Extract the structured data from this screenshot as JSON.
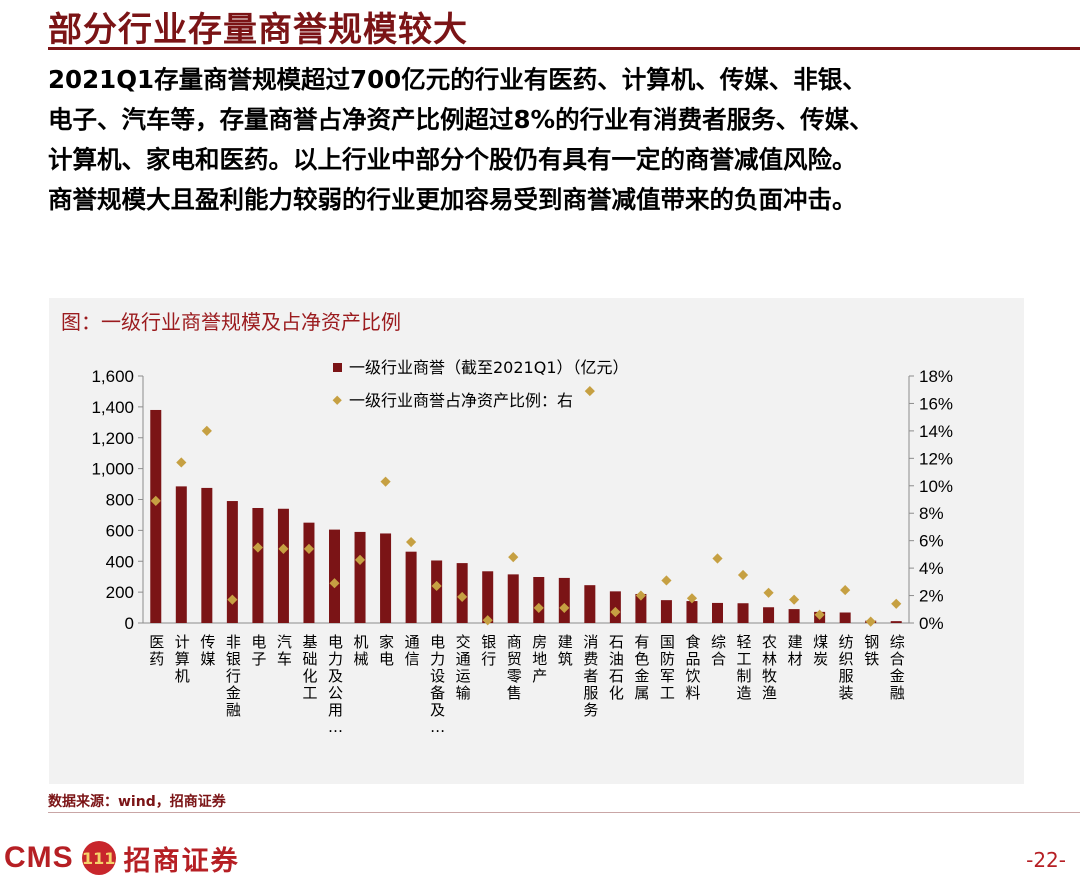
{
  "slide": {
    "title": "部分行业存量商誉规模较大",
    "summary_lines": [
      "2021Q1存量商誉规模超过700亿元的行业有医药、计算机、传媒、非银、",
      "电子、汽车等，存量商誉占净资产比例超过8%的行业有消费者服务、传媒、",
      "计算机、家电和医药。以上行业中部分个股仍有具有一定的商誉减值风险。",
      "商誉规模大且盈利能力较弱的行业更加容易受到商誉减值带来的负面冲击。"
    ],
    "source": "数据来源：wind，招商证券",
    "page_number": "-22-",
    "logo": {
      "cms": "CMS",
      "emblem": "111",
      "company": "招商证券"
    }
  },
  "colors": {
    "accent": "#7b1416",
    "bar": "#7b1416",
    "marker": "#c6a042",
    "chart_bg": "#f2f2f2"
  },
  "chart_data": {
    "type": "bar",
    "title": "图：一级行业商誉规模及占净资产比例",
    "categories": [
      "医药",
      "计算机",
      "传媒",
      "非银行金融",
      "电子",
      "汽车",
      "基础化工",
      "电力及公用…",
      "机械",
      "家电",
      "通信",
      "电力设备及…",
      "交通运输",
      "银行",
      "商贸零售",
      "房地产",
      "建筑",
      "消费者服务",
      "石油石化",
      "有色金属",
      "国防军工",
      "食品饮料",
      "综合",
      "轻工制造",
      "农林牧渔",
      "建材",
      "煤炭",
      "纺织服装",
      "钢铁",
      "综合金融"
    ],
    "series": [
      {
        "name": "一级行业商誉（截至2021Q1）（亿元）",
        "type": "bar",
        "axis": "left",
        "values": [
          1380,
          885,
          875,
          790,
          745,
          740,
          650,
          605,
          590,
          580,
          462,
          405,
          388,
          335,
          315,
          298,
          292,
          245,
          205,
          188,
          148,
          142,
          130,
          128,
          102,
          90,
          72,
          68,
          15,
          12
        ]
      },
      {
        "name": "一级行业商誉占净资产比例：右",
        "type": "scatter",
        "axis": "right",
        "values": [
          8.9,
          11.7,
          14.0,
          1.7,
          5.5,
          5.4,
          5.4,
          2.9,
          4.6,
          10.3,
          5.9,
          2.7,
          1.9,
          0.2,
          4.8,
          1.1,
          1.1,
          16.9,
          0.8,
          2.0,
          3.1,
          1.8,
          4.7,
          3.5,
          2.2,
          1.7,
          0.6,
          2.4,
          0.1,
          1.4
        ]
      }
    ],
    "left_axis": {
      "min": 0,
      "max": 1600,
      "ticks": [
        "0",
        "200",
        "400",
        "600",
        "800",
        "1,000",
        "1,200",
        "1,400",
        "1,600"
      ]
    },
    "right_axis": {
      "min": 0,
      "max": 18,
      "ticks": [
        "0%",
        "2%",
        "4%",
        "6%",
        "8%",
        "10%",
        "12%",
        "14%",
        "16%",
        "18%"
      ]
    },
    "legend_position": "top-center",
    "grid": false
  }
}
